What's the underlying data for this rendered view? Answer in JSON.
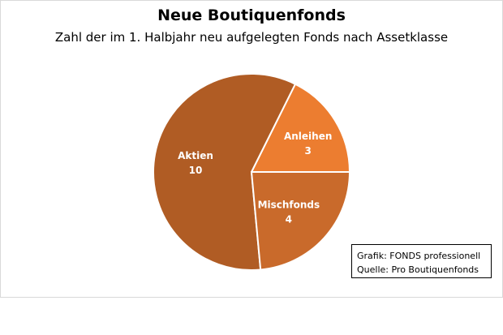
{
  "chart_data": {
    "type": "pie",
    "title": "Neue Boutiquenfonds",
    "subtitle": "Zahl der im 1. Halbjahr neu aufgelegten  Fonds nach Assetklasse",
    "slices": [
      {
        "label": "Anleihen",
        "value": 3,
        "color": "#ec7d30"
      },
      {
        "label": "Aktien",
        "value": 10,
        "color": "#b05c24"
      },
      {
        "label": "Mischfonds",
        "value": 4,
        "color": "#c96a2b"
      }
    ]
  },
  "source": {
    "line1": "Grafik: FONDS professionell",
    "line2": "Quelle: Pro Boutiquenfonds"
  }
}
